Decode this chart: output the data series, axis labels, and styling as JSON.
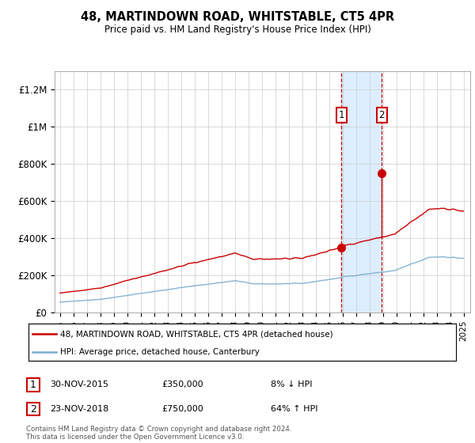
{
  "title": "48, MARTINDOWN ROAD, WHITSTABLE, CT5 4PR",
  "subtitle": "Price paid vs. HM Land Registry's House Price Index (HPI)",
  "ylim": [
    0,
    1300000
  ],
  "yticks": [
    0,
    200000,
    400000,
    600000,
    800000,
    1000000,
    1200000
  ],
  "ytick_labels": [
    "£0",
    "£200K",
    "£400K",
    "£600K",
    "£800K",
    "£1M",
    "£1.2M"
  ],
  "transaction1_date": 2015.92,
  "transaction1_price": 350000,
  "transaction2_date": 2018.92,
  "transaction2_price": 750000,
  "hpi_color": "#7aabcf",
  "price_color": "#cc0000",
  "shade_color": "#ddeeff",
  "box_color": "#cc0000",
  "legend_label1": "48, MARTINDOWN ROAD, WHITSTABLE, CT5 4PR (detached house)",
  "legend_label2": "HPI: Average price, detached house, Canterbury",
  "table_row1": [
    "1",
    "30-NOV-2015",
    "£350,000",
    "8% ↓ HPI"
  ],
  "table_row2": [
    "2",
    "23-NOV-2018",
    "£750,000",
    "64% ↑ HPI"
  ],
  "footnote": "Contains HM Land Registry data © Crown copyright and database right 2024.\nThis data is licensed under the Open Government Licence v3.0."
}
